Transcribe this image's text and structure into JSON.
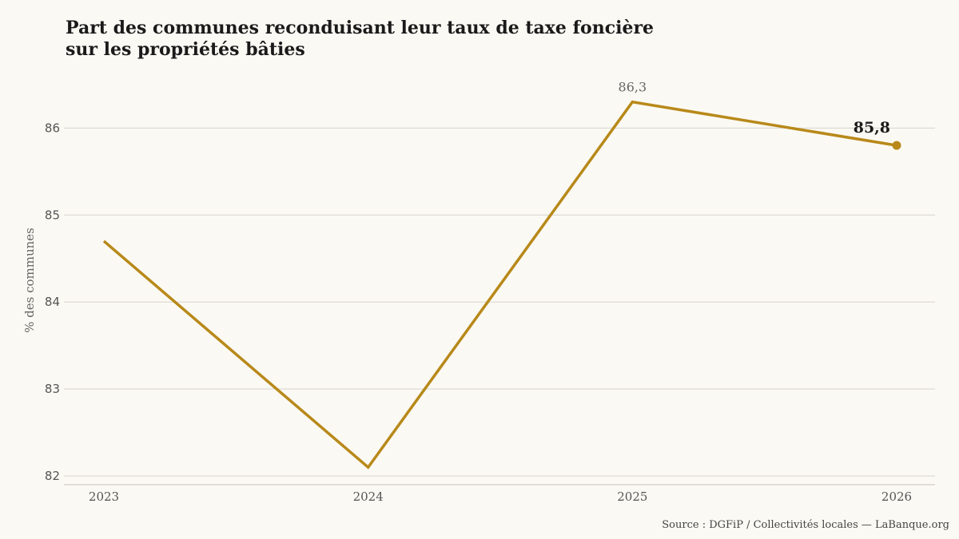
{
  "title_lines": [
    "Part des communes reconduisant leur taux de taxe foncière",
    "sur les propriétés bâties"
  ],
  "source": "Source : DGFiP / Collectivités locales — LaBanque.org",
  "colors": {
    "line": "#b8891a",
    "grid": "#d6d4cc",
    "background": "#fbf9f3"
  },
  "chart_data": {
    "type": "line",
    "title": "Part des communes reconduisant leur taux de taxe foncière sur les propriétés bâties",
    "xlabel": "",
    "ylabel": "% des communes",
    "categories": [
      "2023",
      "2024",
      "2025",
      "2026"
    ],
    "series": [
      {
        "values": [
          84.7,
          82.1,
          86.3,
          85.8
        ]
      }
    ],
    "data_labels": [
      {
        "index": 2,
        "text": "86,3"
      },
      {
        "index": 3,
        "text": "85,8"
      }
    ],
    "yticks": [
      82,
      83,
      84,
      85,
      86
    ],
    "ytick_labels": [
      "82",
      "83",
      "84",
      "85",
      "86"
    ],
    "ylim": [
      81.9,
      86.6
    ],
    "grid": "horizontal",
    "end_marker": true
  }
}
